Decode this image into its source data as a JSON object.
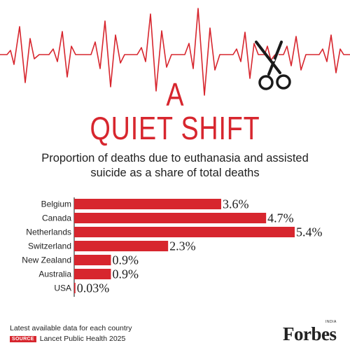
{
  "header": {
    "title_line1": "A",
    "title_line2": "QUIET SHIFT",
    "subtitle_line1": "Proportion of deaths due to euthanasia and assisted",
    "subtitle_line2": "suicide as a share of total deaths"
  },
  "chart_data": {
    "type": "bar",
    "orientation": "horizontal",
    "categories": [
      "Belgium",
      "Canada",
      "Netherlands",
      "Switzerland",
      "New Zealand",
      "Australia",
      "USA"
    ],
    "values": [
      3.6,
      4.7,
      5.4,
      2.3,
      0.9,
      0.9,
      0.03
    ],
    "value_labels": [
      "3.6%",
      "4.7%",
      "5.4%",
      "2.3%",
      "0.9%",
      "0.9%",
      "0.03%"
    ],
    "bar_color": "#d7262e",
    "xlim": [
      0,
      5.4
    ],
    "grid": false,
    "legend": "none"
  },
  "footer": {
    "note": "Latest available data for each country",
    "source_tag": "SOURCE",
    "source_text": "Lancet Public Health 2025",
    "logo_text": "Forbes",
    "logo_sub": "INDIA"
  },
  "colors": {
    "accent": "#d7262e",
    "text": "#1f1f1f"
  },
  "icons": {
    "heartbeat": "ecg-line",
    "scissors": "scissors-icon"
  }
}
